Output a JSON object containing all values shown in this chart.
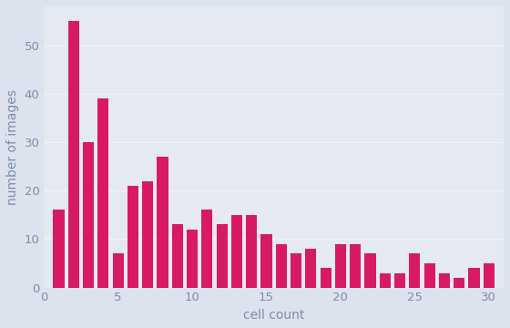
{
  "values": [
    16,
    55,
    30,
    39,
    7,
    21,
    22,
    27,
    13,
    12,
    16,
    13,
    15,
    15,
    11,
    9,
    7,
    8,
    4,
    9,
    9,
    7,
    3,
    3,
    7,
    5,
    3,
    2,
    4,
    5
  ],
  "xlabel": "cell count",
  "ylabel": "number of images",
  "bar_color": "#d81b60",
  "background_color": "#dde3ee",
  "axes_bg_color": "#e4e9f2",
  "xlim_left": 0.0,
  "xlim_right": 31.0,
  "ylim": [
    0,
    58
  ],
  "xticks": [
    0,
    5,
    10,
    15,
    20,
    25,
    30
  ],
  "yticks": [
    0,
    10,
    20,
    30,
    40,
    50
  ],
  "tick_color": "#7a8caa",
  "label_color": "#7a8caa",
  "grid_color": "#f0f3f8",
  "xlabel_fontsize": 10,
  "ylabel_fontsize": 10,
  "tick_fontsize": 9.5
}
